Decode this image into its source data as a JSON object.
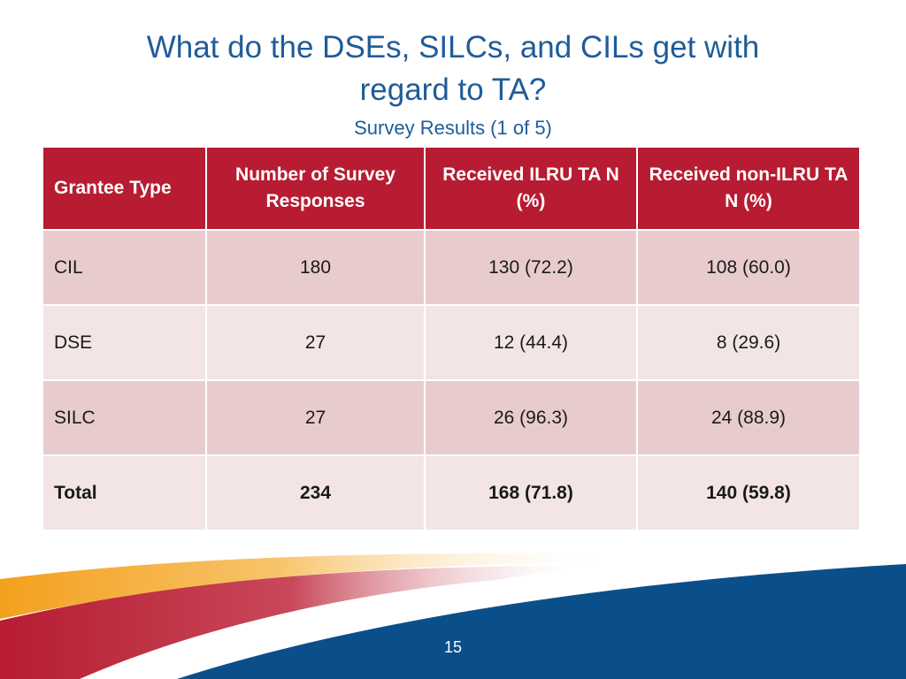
{
  "slide": {
    "title_line1": "What do the DSEs, SILCs, and CILs get with",
    "title_line2": "regard to TA?",
    "subtitle": "Survey Results (1 of 5)",
    "page_number": "15"
  },
  "table": {
    "headers": [
      "Grantee Type",
      "Number of Survey Responses",
      "Received ILRU TA N (%)",
      "Received non-ILRU TA N (%)"
    ],
    "rows": [
      [
        "CIL",
        "180",
        "130 (72.2)",
        "108 (60.0)"
      ],
      [
        "DSE",
        "27",
        "12 (44.4)",
        "8 (29.6)"
      ],
      [
        "SILC",
        "27",
        "26 (96.3)",
        "24 (88.9)"
      ],
      [
        "Total",
        "234",
        "168 (71.8)",
        "140 (59.8)"
      ]
    ]
  },
  "colors": {
    "title": "#1f5c99",
    "header_bg": "#b71c32",
    "row_dark": "#e8cccd",
    "row_light": "#f3e5e6",
    "swoosh_blue": "#0b4f8a",
    "swoosh_orange": "#f2a22a",
    "swoosh_red": "#b71c32"
  }
}
